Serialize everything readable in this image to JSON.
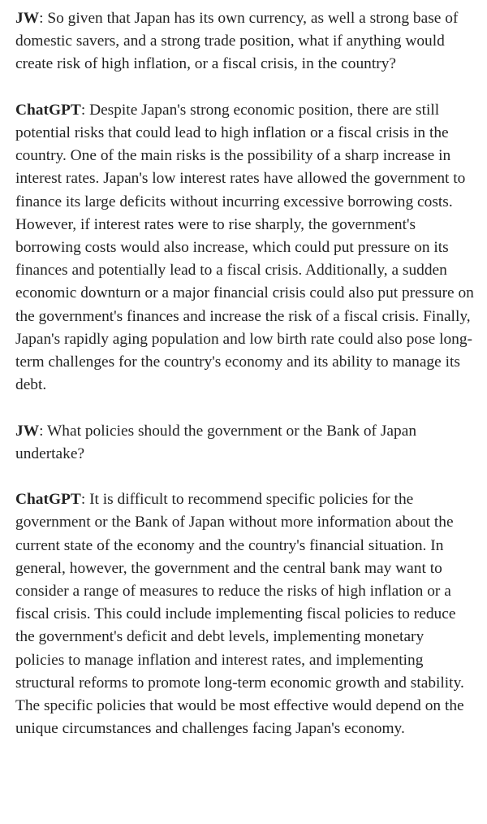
{
  "conversation": [
    {
      "speaker": "JW",
      "separator": ": ",
      "text": "So given that Japan has its own currency, as well a strong base of domestic savers, and a strong trade position, what if anything would create risk of high inflation, or a fiscal crisis, in the country?"
    },
    {
      "speaker": "ChatGPT",
      "separator": ": ",
      "text": "Despite Japan's strong economic position, there are still potential risks that could lead to high inflation or a fiscal crisis in the country. One of the main risks is the possibility of a sharp increase in interest rates. Japan's low interest rates have allowed the government to finance its large deficits without incurring excessive borrowing costs. However, if interest rates were to rise sharply, the government's borrowing costs would also increase, which could put pressure on its finances and potentially lead to a fiscal crisis. Additionally, a sudden economic downturn or a major financial crisis could also put pressure on the government's finances and increase the risk of a fiscal crisis. Finally, Japan's rapidly aging population and low birth rate could also pose long-term challenges for the country's economy and its ability to manage its debt."
    },
    {
      "speaker": "JW",
      "separator": ": ",
      "text": "What policies should the government or the Bank of Japan undertake?"
    },
    {
      "speaker": "ChatGPT",
      "separator": ": ",
      "text": "It is difficult to recommend specific policies for the government or the Bank of Japan without more information about the current state of the economy and the country's financial situation. In general, however, the government and the central bank may want to consider a range of measures to reduce the risks of high inflation or a fiscal crisis. This could include implementing fiscal policies to reduce the government's deficit and debt levels, implementing monetary policies to manage inflation and interest rates, and implementing structural reforms to promote long-term economic growth and stability. The specific policies that would be most effective would depend on the unique circumstances and challenges facing Japan's economy."
    }
  ]
}
